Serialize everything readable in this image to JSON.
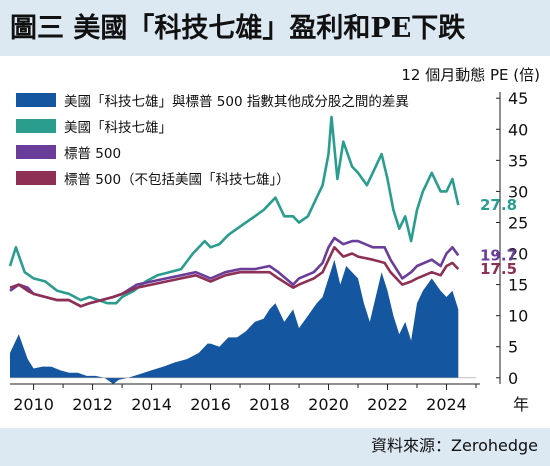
{
  "title": "圖三  美國「科技七雄」盈利和PE下跌",
  "source": "資料來源：Zerohedge",
  "colors": {
    "spread": "#1456a0",
    "mag7": "#2a9d8f",
    "sp500": "#6a3d9a",
    "sp500_ex": "#8e2f55"
  },
  "chart_data": {
    "type": "area",
    "ylabel": "12 個月動態 PE (倍)",
    "xlabel": "年",
    "ylim": [
      -1,
      46
    ],
    "yticks": [
      0,
      5,
      10,
      15,
      20,
      25,
      30,
      35,
      40,
      45
    ],
    "xlim": [
      2009.2,
      2025.0
    ],
    "xticks": [
      2010,
      2012,
      2014,
      2016,
      2018,
      2020,
      2022,
      2024
    ],
    "legend_position": "top-left",
    "series": [
      {
        "name": "美國「科技七雄」與標普 500 指數其他成分股之間的差異",
        "kind": "area",
        "color_key": "spread",
        "points": [
          [
            2009.2,
            4
          ],
          [
            2009.5,
            7
          ],
          [
            2009.8,
            3
          ],
          [
            2010.0,
            1.5
          ],
          [
            2010.3,
            1.8
          ],
          [
            2010.6,
            1.8
          ],
          [
            2010.9,
            1.2
          ],
          [
            2011.2,
            0.8
          ],
          [
            2011.5,
            0.8
          ],
          [
            2011.8,
            0.3
          ],
          [
            2012.1,
            0.3
          ],
          [
            2012.4,
            0
          ],
          [
            2012.7,
            -1
          ],
          [
            2012.9,
            -0.3
          ],
          [
            2013.2,
            0
          ],
          [
            2013.6,
            0.6
          ],
          [
            2014.0,
            1.2
          ],
          [
            2014.4,
            1.8
          ],
          [
            2014.8,
            2.5
          ],
          [
            2015.2,
            3
          ],
          [
            2015.6,
            4
          ],
          [
            2015.9,
            5.5
          ],
          [
            2016.0,
            5.5
          ],
          [
            2016.3,
            5
          ],
          [
            2016.6,
            6.5
          ],
          [
            2016.9,
            6.5
          ],
          [
            2017.2,
            7.5
          ],
          [
            2017.5,
            9
          ],
          [
            2017.8,
            9.5
          ],
          [
            2018.0,
            11
          ],
          [
            2018.2,
            12
          ],
          [
            2018.5,
            9
          ],
          [
            2018.8,
            11
          ],
          [
            2019.0,
            8
          ],
          [
            2019.3,
            10
          ],
          [
            2019.6,
            12
          ],
          [
            2019.8,
            13
          ],
          [
            2020.0,
            16
          ],
          [
            2020.2,
            19
          ],
          [
            2020.4,
            15
          ],
          [
            2020.6,
            18
          ],
          [
            2020.8,
            17
          ],
          [
            2021.0,
            16
          ],
          [
            2021.2,
            12
          ],
          [
            2021.4,
            9
          ],
          [
            2021.6,
            13
          ],
          [
            2021.8,
            17
          ],
          [
            2022.0,
            14
          ],
          [
            2022.2,
            10
          ],
          [
            2022.4,
            7
          ],
          [
            2022.6,
            9
          ],
          [
            2022.8,
            6
          ],
          [
            2023.0,
            12
          ],
          [
            2023.2,
            14
          ],
          [
            2023.5,
            16
          ],
          [
            2023.8,
            14
          ],
          [
            2024.0,
            13
          ],
          [
            2024.2,
            14
          ],
          [
            2024.4,
            11
          ]
        ]
      },
      {
        "name": "美國「科技七雄」",
        "kind": "line",
        "color_key": "mag7",
        "end_label": "27.8",
        "points": [
          [
            2009.2,
            18
          ],
          [
            2009.4,
            21
          ],
          [
            2009.7,
            17
          ],
          [
            2010.0,
            16
          ],
          [
            2010.4,
            15.5
          ],
          [
            2010.8,
            14
          ],
          [
            2011.2,
            13.5
          ],
          [
            2011.6,
            12.5
          ],
          [
            2011.9,
            13
          ],
          [
            2012.2,
            12.5
          ],
          [
            2012.5,
            12
          ],
          [
            2012.8,
            12
          ],
          [
            2013.0,
            13
          ],
          [
            2013.4,
            14
          ],
          [
            2013.8,
            15.5
          ],
          [
            2014.2,
            16.5
          ],
          [
            2014.6,
            17
          ],
          [
            2015.0,
            17.5
          ],
          [
            2015.4,
            20
          ],
          [
            2015.8,
            22
          ],
          [
            2016.0,
            21
          ],
          [
            2016.3,
            21.5
          ],
          [
            2016.6,
            23
          ],
          [
            2016.9,
            24
          ],
          [
            2017.2,
            25
          ],
          [
            2017.5,
            26
          ],
          [
            2017.8,
            27
          ],
          [
            2018.0,
            28
          ],
          [
            2018.2,
            29
          ],
          [
            2018.5,
            26
          ],
          [
            2018.8,
            26
          ],
          [
            2019.0,
            25
          ],
          [
            2019.3,
            26
          ],
          [
            2019.6,
            29
          ],
          [
            2019.8,
            31
          ],
          [
            2020.0,
            36
          ],
          [
            2020.1,
            42
          ],
          [
            2020.3,
            32
          ],
          [
            2020.5,
            38
          ],
          [
            2020.8,
            34
          ],
          [
            2021.0,
            33
          ],
          [
            2021.3,
            31
          ],
          [
            2021.6,
            34
          ],
          [
            2021.8,
            36
          ],
          [
            2022.0,
            32
          ],
          [
            2022.2,
            27
          ],
          [
            2022.4,
            24
          ],
          [
            2022.6,
            26
          ],
          [
            2022.8,
            22
          ],
          [
            2023.0,
            27
          ],
          [
            2023.2,
            30
          ],
          [
            2023.5,
            33
          ],
          [
            2023.8,
            30
          ],
          [
            2024.0,
            30
          ],
          [
            2024.2,
            32
          ],
          [
            2024.4,
            27.8
          ]
        ]
      },
      {
        "name": "標普 500",
        "kind": "line",
        "color_key": "sp500",
        "end_label": "19.7",
        "points": [
          [
            2009.2,
            14
          ],
          [
            2009.5,
            15
          ],
          [
            2009.8,
            14.5
          ],
          [
            2010.0,
            13.5
          ],
          [
            2010.4,
            13
          ],
          [
            2010.8,
            12.5
          ],
          [
            2011.2,
            12.5
          ],
          [
            2011.6,
            11.5
          ],
          [
            2011.9,
            12
          ],
          [
            2012.3,
            12.5
          ],
          [
            2012.7,
            13
          ],
          [
            2013.0,
            13.5
          ],
          [
            2013.5,
            15
          ],
          [
            2014.0,
            15.5
          ],
          [
            2014.5,
            16
          ],
          [
            2015.0,
            16.5
          ],
          [
            2015.5,
            17
          ],
          [
            2016.0,
            16
          ],
          [
            2016.5,
            17
          ],
          [
            2017.0,
            17.5
          ],
          [
            2017.5,
            17.5
          ],
          [
            2018.0,
            18
          ],
          [
            2018.3,
            17
          ],
          [
            2018.8,
            15
          ],
          [
            2019.0,
            16
          ],
          [
            2019.5,
            17
          ],
          [
            2019.8,
            18.5
          ],
          [
            2020.0,
            21
          ],
          [
            2020.2,
            22.5
          ],
          [
            2020.5,
            21.5
          ],
          [
            2020.8,
            22
          ],
          [
            2021.0,
            22
          ],
          [
            2021.5,
            21
          ],
          [
            2021.9,
            21
          ],
          [
            2022.1,
            19
          ],
          [
            2022.5,
            16
          ],
          [
            2022.8,
            17
          ],
          [
            2023.0,
            18
          ],
          [
            2023.5,
            19
          ],
          [
            2023.8,
            18
          ],
          [
            2024.0,
            20
          ],
          [
            2024.2,
            21
          ],
          [
            2024.4,
            19.7
          ]
        ]
      },
      {
        "name": "標普 500（不包括美國「科技七雄」）",
        "kind": "line",
        "color_key": "sp500_ex",
        "end_label": "17.5",
        "points": [
          [
            2009.2,
            14.5
          ],
          [
            2009.5,
            15
          ],
          [
            2009.8,
            14
          ],
          [
            2010.0,
            13.5
          ],
          [
            2010.4,
            13
          ],
          [
            2010.8,
            12.5
          ],
          [
            2011.2,
            12.5
          ],
          [
            2011.6,
            11.5
          ],
          [
            2011.9,
            12
          ],
          [
            2012.3,
            12.5
          ],
          [
            2012.7,
            13
          ],
          [
            2013.0,
            13.5
          ],
          [
            2013.5,
            14.5
          ],
          [
            2014.0,
            15
          ],
          [
            2014.5,
            15.5
          ],
          [
            2015.0,
            16
          ],
          [
            2015.5,
            16.5
          ],
          [
            2016.0,
            15.5
          ],
          [
            2016.5,
            16.5
          ],
          [
            2017.0,
            17
          ],
          [
            2017.5,
            17
          ],
          [
            2018.0,
            17
          ],
          [
            2018.3,
            16
          ],
          [
            2018.8,
            14.5
          ],
          [
            2019.0,
            15
          ],
          [
            2019.5,
            16
          ],
          [
            2019.8,
            17
          ],
          [
            2020.0,
            19
          ],
          [
            2020.2,
            21
          ],
          [
            2020.5,
            19.5
          ],
          [
            2020.8,
            20
          ],
          [
            2021.0,
            19.5
          ],
          [
            2021.5,
            19
          ],
          [
            2021.9,
            18.5
          ],
          [
            2022.1,
            17
          ],
          [
            2022.5,
            15
          ],
          [
            2022.8,
            15.5
          ],
          [
            2023.0,
            16
          ],
          [
            2023.5,
            17
          ],
          [
            2023.8,
            16.5
          ],
          [
            2024.0,
            18
          ],
          [
            2024.2,
            18.5
          ],
          [
            2024.4,
            17.5
          ]
        ]
      }
    ]
  }
}
